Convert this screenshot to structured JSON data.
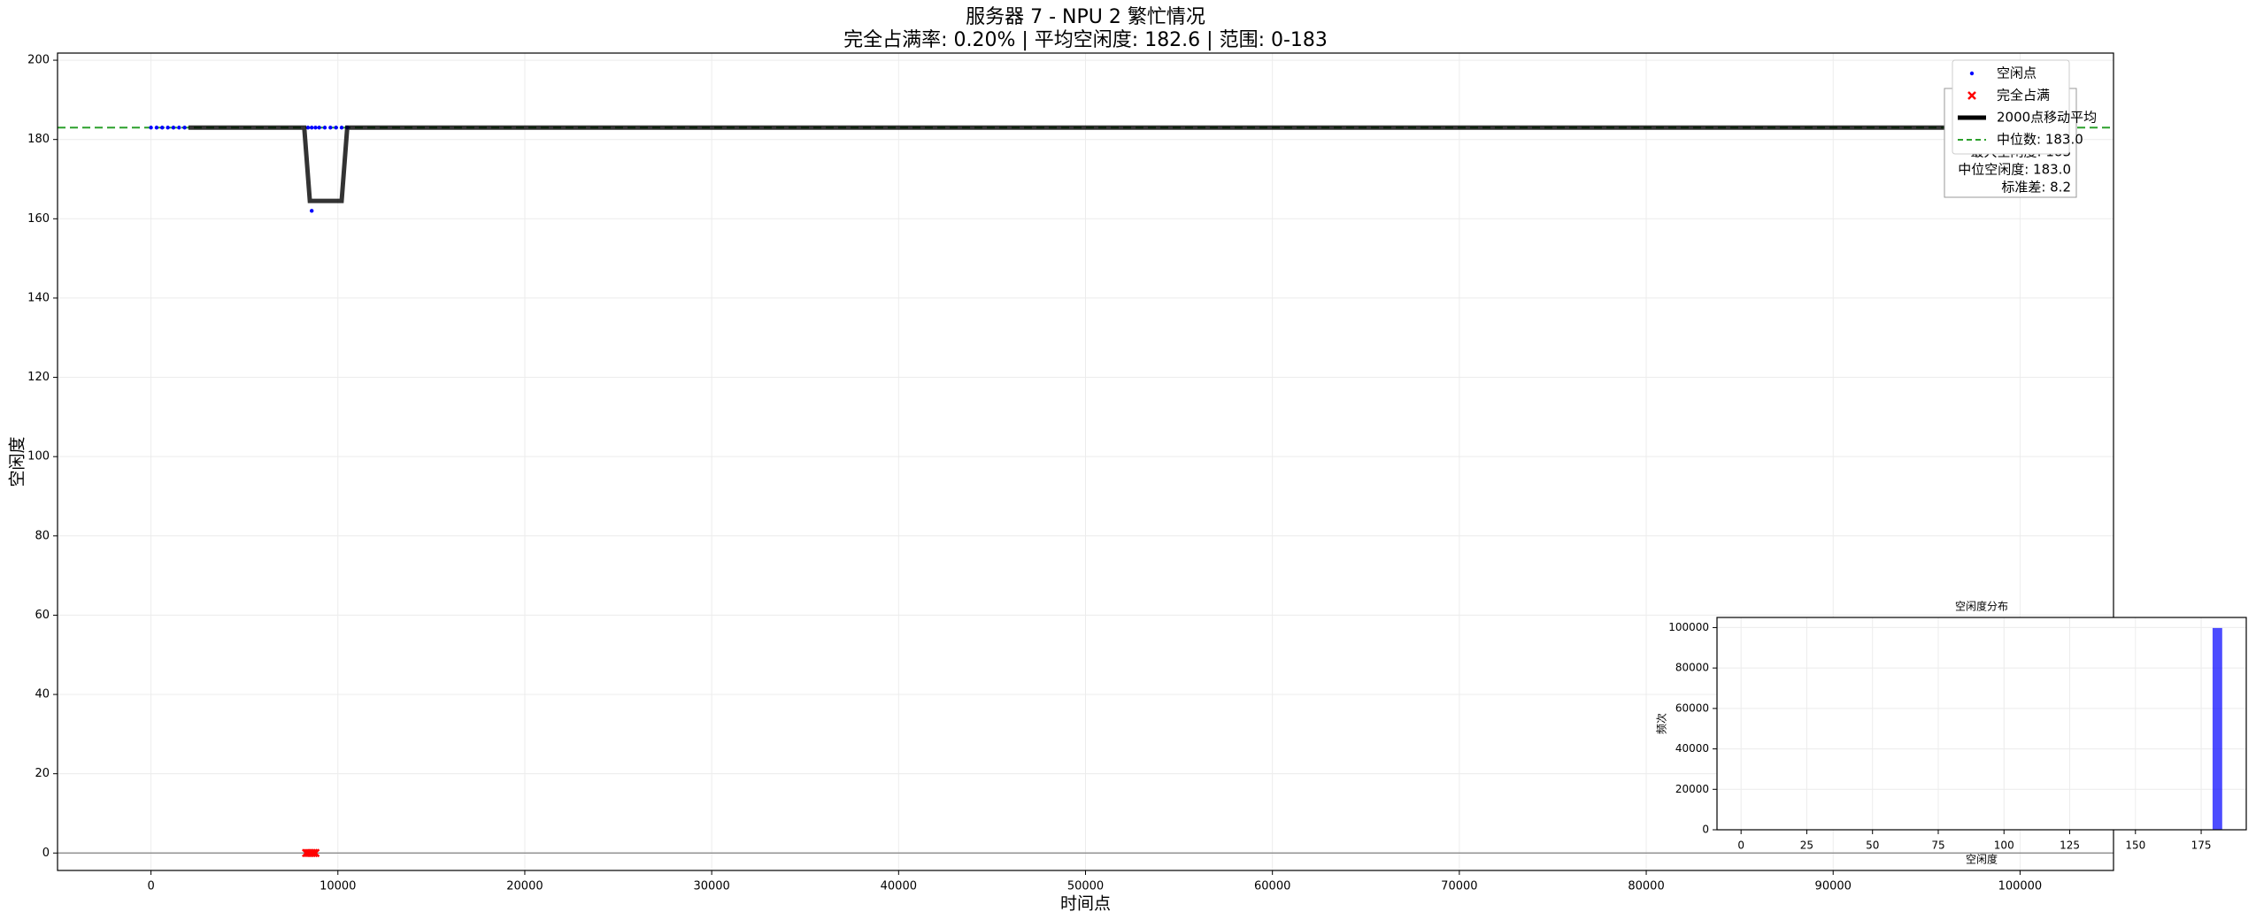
{
  "chart_data": [
    {
      "type": "scatter",
      "title": "服务器 7 - NPU 2 繁忙情况",
      "subtitle": "完全占满率: 0.20% | 平均空闲度: 182.6 | 范围: 0-183",
      "x_label": "时间点",
      "y_label": "空闲度",
      "xlim": [
        -5000,
        105000
      ],
      "xticks": [
        0,
        10000,
        20000,
        30000,
        40000,
        50000,
        60000,
        70000,
        80000,
        90000,
        100000
      ],
      "ylim": [
        -4.4,
        201.8
      ],
      "yticks": [
        0,
        20,
        40,
        60,
        80,
        100,
        120,
        140,
        160,
        180,
        200
      ],
      "grid": true,
      "baseline": 0,
      "series": [
        {
          "name": "空闲点",
          "color": "#0000ff",
          "marker": "dot",
          "x": [
            0,
            300,
            600,
            900,
            1200,
            1500,
            1800,
            8400,
            8600,
            8800,
            9000,
            9300,
            9600,
            9900,
            10200,
            10500,
            8600
          ],
          "values": [
            183,
            183,
            183,
            183,
            183,
            183,
            183,
            183,
            183,
            183,
            183,
            183,
            183,
            183,
            183,
            183,
            162
          ]
        },
        {
          "name": "完全占满",
          "color": "#ff0000",
          "marker": "x",
          "x": [
            8300,
            8400,
            8500,
            8600,
            8700,
            8800
          ],
          "values": [
            0,
            0,
            0,
            0,
            0,
            0
          ]
        },
        {
          "name": "2000点移动平均",
          "color": "#000000",
          "marker": "line",
          "x": [
            2000,
            8200,
            8500,
            10200,
            10500,
            100000
          ],
          "values": [
            183,
            183,
            164.5,
            164.5,
            183,
            183
          ]
        }
      ],
      "hlines": [
        {
          "name": "中位数: 183.0",
          "value": 183,
          "color": "#2ca02c",
          "dashed": true
        }
      ],
      "legend": "upper right",
      "stats": [
        "最大空闲度: 183",
        "中位空闲度: 183.0",
        "标准差: 8.2"
      ]
    },
    {
      "type": "histogram",
      "title": "空闲度分布",
      "x_label": "空闲度",
      "y_label": "频次",
      "color": "#0000ff",
      "xlim": [
        -9.15,
        192.15
      ],
      "xticks": [
        0,
        25,
        50,
        75,
        100,
        125,
        150,
        175
      ],
      "ylim": [
        0,
        105000
      ],
      "yticks": [
        0,
        20000,
        40000,
        60000,
        80000,
        100000
      ],
      "grid": true,
      "bins": [
        0,
        3.66,
        7.32,
        10.98,
        14.64,
        18.3,
        21.96,
        25.62,
        29.28,
        32.94,
        36.6,
        40.26,
        43.92,
        47.58,
        51.24,
        54.9,
        58.56,
        62.22,
        65.88,
        69.54,
        73.2,
        76.86,
        80.52,
        84.18,
        87.84,
        91.5,
        95.16,
        98.82,
        102.48,
        106.14,
        109.8,
        113.46,
        117.12,
        120.78,
        124.44,
        128.1,
        131.76,
        135.42,
        139.08,
        142.74,
        146.4,
        150.06,
        153.72,
        157.38,
        161.04,
        164.7,
        168.36,
        172.02,
        175.68,
        179.34,
        183
      ],
      "values": [
        200,
        0,
        0,
        0,
        0,
        0,
        0,
        0,
        0,
        0,
        0,
        0,
        0,
        0,
        0,
        0,
        0,
        0,
        0,
        0,
        0,
        0,
        0,
        0,
        0,
        0,
        0,
        0,
        0,
        0,
        0,
        0,
        0,
        0,
        0,
        0,
        0,
        0,
        0,
        0,
        0,
        0,
        0,
        0,
        10,
        0,
        0,
        0,
        0,
        99790
      ]
    }
  ]
}
